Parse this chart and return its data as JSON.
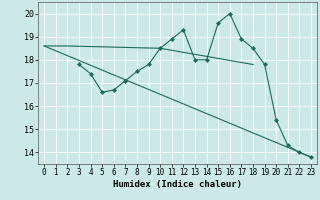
{
  "title": "",
  "xlabel": "Humidex (Indice chaleur)",
  "ylabel": "",
  "background_color": "#cce8e8",
  "grid_color": "#aed4d4",
  "line_color": "#1a6b5a",
  "xlim": [
    -0.5,
    23.5
  ],
  "ylim": [
    13.5,
    20.5
  ],
  "yticks": [
    14,
    15,
    16,
    17,
    18,
    19,
    20
  ],
  "xticks": [
    0,
    1,
    2,
    3,
    4,
    5,
    6,
    7,
    8,
    9,
    10,
    11,
    12,
    13,
    14,
    15,
    16,
    17,
    18,
    19,
    20,
    21,
    22,
    23
  ],
  "series": [
    {
      "x": [
        0,
        1,
        2,
        10,
        18
      ],
      "y": [
        18.6,
        18.6,
        18.6,
        18.5,
        17.8
      ],
      "has_markers": false
    },
    {
      "x": [
        3,
        4,
        5,
        6,
        7,
        8,
        9,
        10,
        11,
        12,
        13,
        14,
        15,
        16,
        17,
        18,
        19,
        20,
        21,
        22,
        23
      ],
      "y": [
        17.8,
        17.4,
        16.6,
        16.7,
        17.1,
        17.5,
        17.8,
        18.5,
        18.9,
        19.3,
        18.0,
        18.0,
        19.6,
        20.0,
        18.9,
        18.5,
        17.8,
        15.4,
        14.3,
        14.0,
        13.8
      ],
      "has_markers": true
    },
    {
      "x": [
        0,
        23
      ],
      "y": [
        18.6,
        13.8
      ],
      "has_markers": false
    }
  ]
}
